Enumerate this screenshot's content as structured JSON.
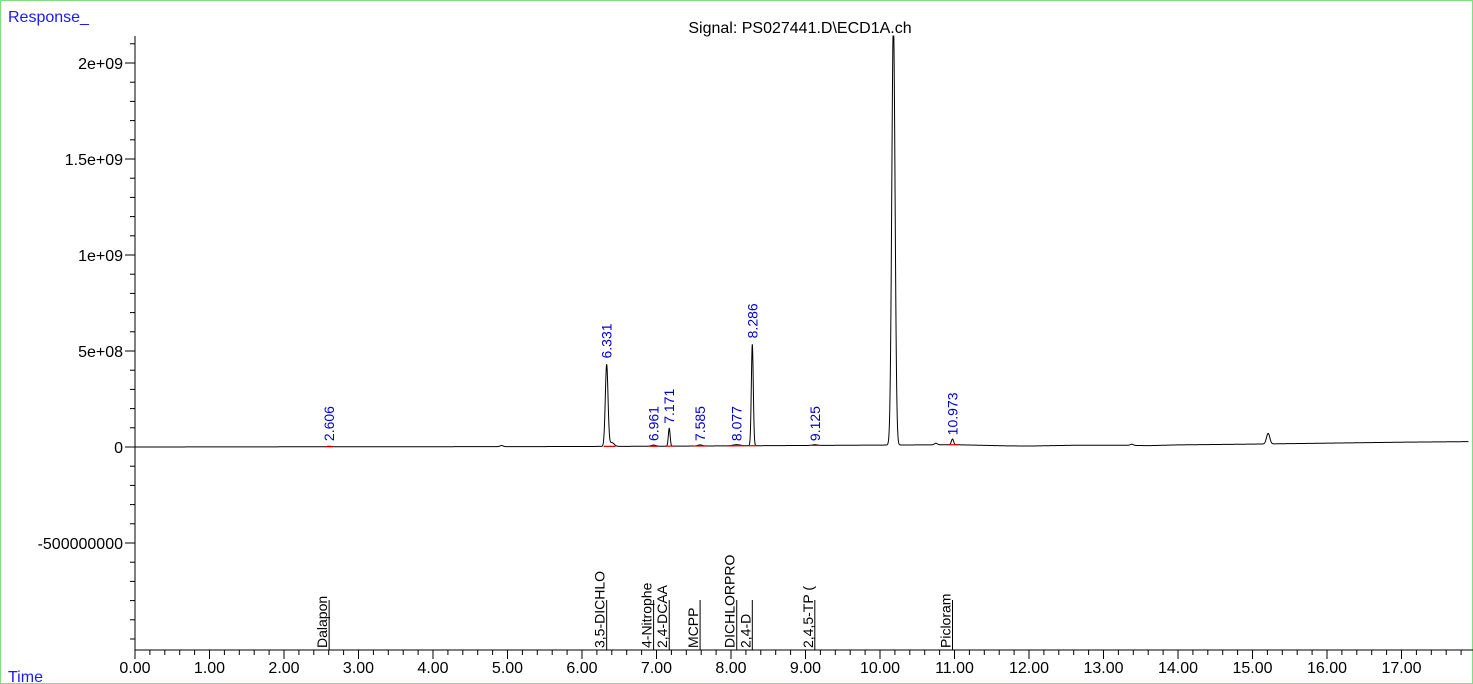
{
  "chart_data": {
    "type": "line",
    "title": "Signal: PS027441.D\\ECD1A.ch",
    "ylabel": "Response_",
    "xlabel": "Time",
    "xlim": [
      0,
      17.9
    ],
    "ylim": [
      -1050000000,
      2150000000
    ],
    "x_ticks": [
      "0.00",
      "1.00",
      "2.00",
      "3.00",
      "4.00",
      "5.00",
      "6.00",
      "7.00",
      "8.00",
      "9.00",
      "10.00",
      "11.00",
      "12.00",
      "13.00",
      "14.00",
      "15.00",
      "16.00",
      "17.00"
    ],
    "y_ticks": [
      {
        "label": "2e+09",
        "value": 2000000000
      },
      {
        "label": "1.5e+09",
        "value": 1500000000
      },
      {
        "label": "1e+09",
        "value": 1000000000
      },
      {
        "label": "5e+08",
        "value": 500000000
      },
      {
        "label": "0",
        "value": 0
      },
      {
        "label": "-500000000",
        "value": -500000000
      }
    ],
    "baseline_points": [
      [
        0,
        0
      ],
      [
        2,
        1000000
      ],
      [
        4,
        1500000
      ],
      [
        6,
        2500000
      ],
      [
        6.2,
        3000000
      ],
      [
        7,
        4000000
      ],
      [
        8,
        6000000
      ],
      [
        9,
        8000000
      ],
      [
        10,
        10000000
      ],
      [
        10.6,
        11000000
      ],
      [
        11,
        12000000
      ],
      [
        11.7,
        6000000
      ],
      [
        12,
        5000000
      ],
      [
        12.6,
        9000000
      ],
      [
        13.3,
        9000000
      ],
      [
        13.6,
        7000000
      ],
      [
        14,
        11000000
      ],
      [
        15,
        15000000
      ],
      [
        16,
        20000000
      ],
      [
        17,
        25000000
      ],
      [
        17.9,
        28000000
      ]
    ],
    "peaks": [
      {
        "rt": 2.606,
        "height": 3000000,
        "width": 0.03
      },
      {
        "rt": 4.92,
        "height": 6000000,
        "width": 0.02
      },
      {
        "rt": 6.331,
        "height": 425000000,
        "width": 0.018
      },
      {
        "rt": 6.4,
        "height": 20000000,
        "width": 0.03
      },
      {
        "rt": 6.961,
        "height": 6000000,
        "width": 0.03
      },
      {
        "rt": 7.171,
        "height": 93000000,
        "width": 0.012
      },
      {
        "rt": 7.585,
        "height": 6000000,
        "width": 0.03
      },
      {
        "rt": 8.077,
        "height": 6000000,
        "width": 0.05
      },
      {
        "rt": 8.286,
        "height": 528000000,
        "width": 0.013
      },
      {
        "rt": 9.125,
        "height": 4000000,
        "width": 0.03
      },
      {
        "rt": 10.18,
        "height": 2200000000,
        "width": 0.022
      },
      {
        "rt": 10.75,
        "height": 8000000,
        "width": 0.02
      },
      {
        "rt": 10.973,
        "height": 30000000,
        "width": 0.015
      },
      {
        "rt": 13.38,
        "height": 6000000,
        "width": 0.02
      },
      {
        "rt": 15.21,
        "height": 55000000,
        "width": 0.022
      }
    ],
    "peak_labels": [
      {
        "rt": 2.606,
        "label": "2.606",
        "y": 10000000
      },
      {
        "rt": 6.331,
        "label": "6.331",
        "y": 440000000
      },
      {
        "rt": 6.961,
        "label": "6.961",
        "y": 10000000
      },
      {
        "rt": 7.171,
        "label": "7.171",
        "y": 100000000
      },
      {
        "rt": 7.585,
        "label": "7.585",
        "y": 10000000
      },
      {
        "rt": 8.077,
        "label": "8.077",
        "y": 10000000
      },
      {
        "rt": 8.286,
        "label": "8.286",
        "y": 545000000
      },
      {
        "rt": 9.125,
        "label": "9.125",
        "y": 10000000
      },
      {
        "rt": 10.973,
        "label": "10.973",
        "y": 40000000
      }
    ],
    "integration_segments": [
      [
        2.55,
        2.66
      ],
      [
        6.29,
        6.45
      ],
      [
        6.9,
        7.02
      ],
      [
        7.12,
        7.23
      ],
      [
        7.5,
        7.66
      ],
      [
        7.95,
        8.2
      ],
      [
        8.24,
        8.34
      ],
      [
        9.05,
        9.2
      ],
      [
        10.92,
        11.05
      ]
    ],
    "compounds": [
      {
        "rt": 2.606,
        "name": "Dalapon"
      },
      {
        "rt": 6.331,
        "name": "3,5-DICHLO"
      },
      {
        "rt": 6.961,
        "name": "4-Nitrophe"
      },
      {
        "rt": 7.171,
        "name": "2,4-DCAA"
      },
      {
        "rt": 7.585,
        "name": "MCPP"
      },
      {
        "rt": 8.077,
        "name": "DICHLORPRO"
      },
      {
        "rt": 8.286,
        "name": "2,4-D"
      },
      {
        "rt": 9.125,
        "name": "2,4,5-TP ("
      },
      {
        "rt": 10.973,
        "name": "Picloram"
      }
    ],
    "colors": {
      "trace": "#000000",
      "integration": "#e00000",
      "peak_label": "#0000cc",
      "axis_title": "#1a1aff",
      "frame": "#7fe07f"
    }
  }
}
